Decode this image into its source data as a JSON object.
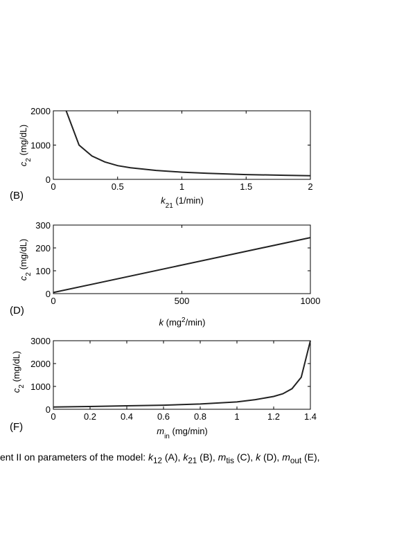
{
  "chart_data": [
    {
      "type": "line",
      "panel": "(B)",
      "ylabel": "c2 (mg/dL)",
      "xlabel": "k21 (1/min)",
      "xlim": [
        0,
        2
      ],
      "ylim": [
        0,
        2000
      ],
      "xticks": [
        0,
        0.5,
        1,
        1.5,
        2
      ],
      "xtick_labels": [
        "0",
        "0.5",
        "1",
        "1.5",
        "2"
      ],
      "yticks": [
        0,
        1000,
        2000
      ],
      "ytick_labels": [
        "0",
        "1000",
        "2000"
      ],
      "x": [
        0.1,
        0.2,
        0.3,
        0.4,
        0.5,
        0.6,
        0.8,
        1.0,
        1.2,
        1.5,
        1.8,
        2.0
      ],
      "y": [
        2000,
        1000,
        680,
        510,
        400,
        340,
        260,
        210,
        175,
        140,
        120,
        105
      ]
    },
    {
      "type": "line",
      "panel": "(D)",
      "ylabel": "c2 (mg/dL)",
      "xlabel": "k (mg2/min)",
      "xlim": [
        0,
        1000
      ],
      "ylim": [
        0,
        300
      ],
      "xticks": [
        0,
        500,
        1000
      ],
      "xtick_labels": [
        "0",
        "500",
        "1000"
      ],
      "yticks": [
        0,
        100,
        200,
        300
      ],
      "ytick_labels": [
        "0",
        "100",
        "200",
        "300"
      ],
      "x": [
        0,
        1000
      ],
      "y": [
        5,
        245
      ]
    },
    {
      "type": "line",
      "panel": "(F)",
      "ylabel": "c2 (mg/dL)",
      "xlabel": "min (mg/min)",
      "xlim": [
        0,
        1.4
      ],
      "ylim": [
        0,
        3000
      ],
      "xticks": [
        0,
        0.2,
        0.4,
        0.6,
        0.8,
        1,
        1.2,
        1.4
      ],
      "xtick_labels": [
        "0",
        "0.2",
        "0.4",
        "0.6",
        "0.8",
        "1",
        "1.2",
        "1.4"
      ],
      "yticks": [
        0,
        1000,
        2000,
        3000
      ],
      "ytick_labels": [
        "0",
        "1000",
        "2000",
        "3000"
      ],
      "x": [
        0,
        0.2,
        0.4,
        0.6,
        0.8,
        1.0,
        1.1,
        1.2,
        1.25,
        1.3,
        1.35,
        1.4
      ],
      "y": [
        100,
        120,
        150,
        180,
        230,
        320,
        420,
        560,
        680,
        900,
        1400,
        3000
      ]
    }
  ],
  "caption": {
    "text": "ent II on parameters of the model: k12 (A), k21 (B), mtis (C), k (D), mout (E),"
  }
}
